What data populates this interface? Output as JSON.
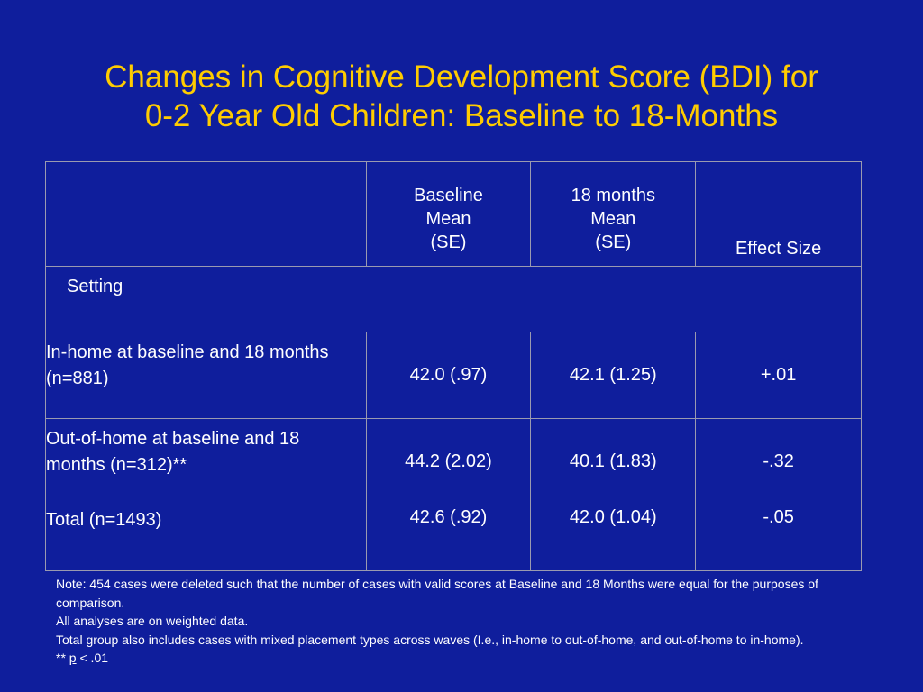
{
  "slide": {
    "title_line1": "Changes in Cognitive Development Score (BDI) for",
    "title_line2": "0-2 Year Old Children: Baseline to 18-Months"
  },
  "table": {
    "header": {
      "empty": "",
      "baseline_line1": "Baseline",
      "baseline_line2": "Mean",
      "baseline_line3": "(SE)",
      "month18_line1": "18 months",
      "month18_line2": "Mean",
      "month18_line3": "(SE)",
      "effect": "Effect Size"
    },
    "section_label": "Setting",
    "rows": [
      {
        "label": "In-home at baseline and 18 months (n=881)",
        "baseline": "42.0 (.97)",
        "month18": "42.1 (1.25)",
        "effect": "+.01"
      },
      {
        "label": "Out-of-home at baseline and 18 months (n=312)**",
        "baseline": "44.2 (2.02)",
        "month18": "40.1 (1.83)",
        "effect": "-.32"
      },
      {
        "label": "Total (n=1493)",
        "baseline": "42.6 (.92)",
        "month18": "42.0 (1.04)",
        "effect": "-.05"
      }
    ]
  },
  "notes": {
    "line1": "Note:  454 cases were deleted such that the number of cases with valid scores at Baseline and 18 Months were equal for the purposes of comparison.",
    "line2": "All analyses are on weighted data.",
    "line3": "Total group also includes cases with mixed placement types across waves (I.e., in-home to out-of-home, and out-of-home to in-home).",
    "sig_prefix": "** ",
    "sig_p": "p",
    "sig_suffix": " < .01"
  },
  "colors": {
    "background": "#0f1e9c",
    "title": "#ffcc00",
    "text": "#ffffff",
    "table_border": "#9a9ab0"
  }
}
